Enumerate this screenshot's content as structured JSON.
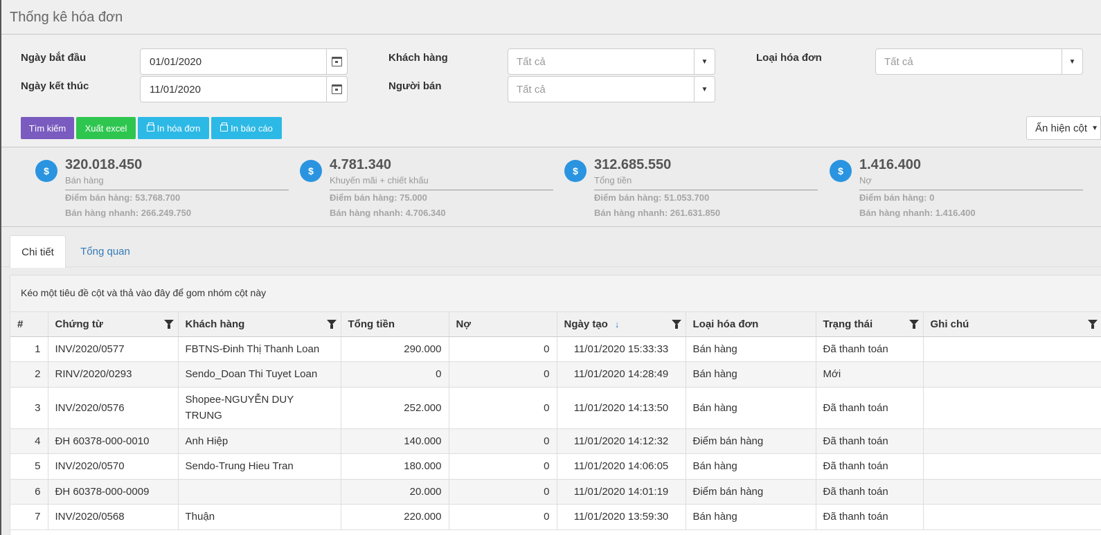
{
  "page": {
    "title": "Thống kê hóa đơn"
  },
  "filters": {
    "start_date_label": "Ngày bắt đầu",
    "start_date_value": "01/01/2020",
    "end_date_label": "Ngày kết thúc",
    "end_date_value": "11/01/2020",
    "customer_label": "Khách hàng",
    "customer_placeholder": "Tất cả",
    "seller_label": "Người bán",
    "seller_placeholder": "Tất cả",
    "invoice_type_label": "Loại hóa đơn",
    "invoice_type_placeholder": "Tất cả"
  },
  "actions": {
    "search": "Tìm kiếm",
    "export_excel": "Xuất excel",
    "print_invoice": "In hóa đơn",
    "print_report": "In báo cáo",
    "column_toggle": "Ẩn hiện cột"
  },
  "stats": [
    {
      "amount": "320.018.450",
      "label": "Bán hàng",
      "sub1": "Điểm bán hàng: 53.768.700",
      "sub2": "Bán hàng nhanh: 266.249.750"
    },
    {
      "amount": "4.781.340",
      "label": "Khuyến mãi + chiết khấu",
      "sub1": "Điểm bán hàng: 75.000",
      "sub2": "Bán hàng nhanh: 4.706.340"
    },
    {
      "amount": "312.685.550",
      "label": "Tổng tiền",
      "sub1": "Điểm bán hàng: 51.053.700",
      "sub2": "Bán hàng nhanh: 261.631.850"
    },
    {
      "amount": "1.416.400",
      "label": "Nợ",
      "sub1": "Điểm bán hàng: 0",
      "sub2": "Bán hàng nhanh: 1.416.400"
    }
  ],
  "stat_icon_glyph": "$",
  "tabs": {
    "detail": "Chi tiết",
    "overview": "Tổng quan"
  },
  "grid": {
    "group_hint": "Kéo một tiêu đề cột và thả vào đây để gom nhóm cột này",
    "columns": {
      "index": "#",
      "document": "Chứng từ",
      "customer": "Khách hàng",
      "total": "Tổng tiền",
      "debt": "Nợ",
      "created": "Ngày tạo",
      "type": "Loại hóa đơn",
      "status": "Trạng thái",
      "note": "Ghi chú"
    },
    "sort_indicator": "↓",
    "rows": [
      {
        "index": "1",
        "document": "INV/2020/0577",
        "customer": "FBTNS-Đinh Thị Thanh Loan",
        "total": "290.000",
        "debt": "0",
        "created": "11/01/2020 15:33:33",
        "type": "Bán hàng",
        "status": "Đã thanh toán",
        "note": ""
      },
      {
        "index": "2",
        "document": "RINV/2020/0293",
        "customer": "Sendo_Doan Thi Tuyet Loan",
        "total": "0",
        "debt": "0",
        "created": "11/01/2020 14:28:49",
        "type": "Bán hàng",
        "status": "Mới",
        "note": ""
      },
      {
        "index": "3",
        "document": "INV/2020/0576",
        "customer": "Shopee-NGUYỄN DUY TRUNG",
        "total": "252.000",
        "debt": "0",
        "created": "11/01/2020 14:13:50",
        "type": "Bán hàng",
        "status": "Đã thanh toán",
        "note": ""
      },
      {
        "index": "4",
        "document": "ĐH 60378-000-0010",
        "customer": "Anh Hiệp",
        "total": "140.000",
        "debt": "0",
        "created": "11/01/2020 14:12:32",
        "type": "Điểm bán hàng",
        "status": "Đã thanh toán",
        "note": ""
      },
      {
        "index": "5",
        "document": "INV/2020/0570",
        "customer": "Sendo-Trung Hieu Tran",
        "total": "180.000",
        "debt": "0",
        "created": "11/01/2020 14:06:05",
        "type": "Bán hàng",
        "status": "Đã thanh toán",
        "note": ""
      },
      {
        "index": "6",
        "document": "ĐH 60378-000-0009",
        "customer": "",
        "total": "20.000",
        "debt": "0",
        "created": "11/01/2020 14:01:19",
        "type": "Điểm bán hàng",
        "status": "Đã thanh toán",
        "note": ""
      },
      {
        "index": "7",
        "document": "INV/2020/0568",
        "customer": "Thuận",
        "total": "220.000",
        "debt": "0",
        "created": "11/01/2020 13:59:30",
        "type": "Bán hàng",
        "status": "Đã thanh toán",
        "note": ""
      }
    ]
  }
}
